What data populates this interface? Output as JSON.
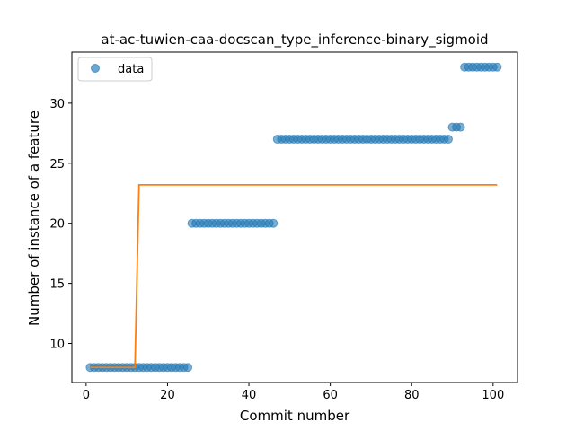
{
  "chart_data": {
    "type": "scatter",
    "title": "at-ac-tuwien-caa-docscan_type_inference-binary_sigmoid",
    "xlabel": "Commit number",
    "ylabel": "Number of instance of a feature",
    "xlim": [
      -3.5,
      106
    ],
    "ylim": [
      6.75,
      34.25
    ],
    "xticks": [
      0,
      20,
      40,
      60,
      80,
      100
    ],
    "yticks": [
      10,
      15,
      20,
      25,
      30
    ],
    "grid": false,
    "legend": {
      "placement": "top-left",
      "entries": [
        "data"
      ]
    },
    "series": [
      {
        "name": "data",
        "kind": "scatter",
        "color": "#1f77b4",
        "segments": [
          {
            "x_from": 1,
            "x_to": 25,
            "y": 8
          },
          {
            "x_from": 26,
            "x_to": 46,
            "y": 20
          },
          {
            "x_from": 47,
            "x_to": 89,
            "y": 27
          },
          {
            "x_from": 90,
            "x_to": 92,
            "y": 28
          },
          {
            "x_from": 93,
            "x_to": 101,
            "y": 33
          }
        ]
      },
      {
        "kind": "line",
        "color": "#ff7f0e",
        "x": [
          1,
          12,
          13,
          101
        ],
        "y": [
          8,
          8,
          23.2,
          23.2
        ]
      }
    ]
  }
}
